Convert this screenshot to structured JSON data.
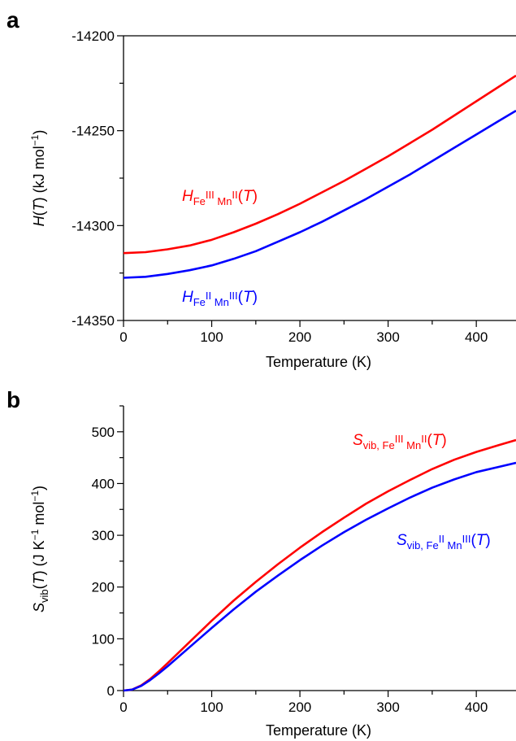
{
  "chart_data": [
    {
      "panel_label": "a",
      "type": "line",
      "xlabel": "Temperature (K)",
      "ylabel": {
        "main": "H",
        "paren": "(",
        "T": "T",
        "rest": ") (kJ mol",
        "sup": "−1",
        "close": ")"
      },
      "xlim": [
        0,
        445
      ],
      "ylim": [
        -14350,
        -14200
      ],
      "xticks": [
        0,
        100,
        200,
        300,
        400
      ],
      "xtick_labels": [
        "0",
        "100",
        "200",
        "300",
        "400"
      ],
      "yticks": [
        -14350,
        -14300,
        -14250,
        -14200
      ],
      "ytick_labels": [
        "-14350",
        "-14300",
        "-14250",
        "-14200"
      ],
      "grid": false,
      "series": [
        {
          "id": "fe3mn2",
          "color": "#ff0000",
          "label": {
            "main": "H",
            "sub1": "Fe",
            "sup1": "III",
            "sub2": " Mn",
            "sup2": "II",
            "open": "(",
            "T": "T",
            "close": ")"
          },
          "x": [
            0,
            25,
            50,
            75,
            100,
            125,
            150,
            175,
            200,
            225,
            250,
            275,
            300,
            325,
            350,
            375,
            400,
            425,
            445
          ],
          "y": [
            -14314.5,
            -14314.0,
            -14312.5,
            -14310.5,
            -14307.5,
            -14303.5,
            -14299.0,
            -14294.0,
            -14288.5,
            -14282.5,
            -14276.5,
            -14270.0,
            -14263.5,
            -14256.5,
            -14249.5,
            -14242.0,
            -14234.5,
            -14227.0,
            -14221.0
          ]
        },
        {
          "id": "fe2mn3",
          "color": "#0000ff",
          "label": {
            "main": "H",
            "sub1": "Fe",
            "sup1": "II",
            "sub2": " Mn",
            "sup2": "III",
            "open": "(",
            "T": "T",
            "close": ")"
          },
          "x": [
            0,
            25,
            50,
            75,
            100,
            125,
            150,
            175,
            200,
            225,
            250,
            275,
            300,
            325,
            350,
            375,
            400,
            425,
            445
          ],
          "y": [
            -14327.5,
            -14327.0,
            -14325.5,
            -14323.5,
            -14321.0,
            -14317.5,
            -14313.5,
            -14308.5,
            -14303.5,
            -14298.0,
            -14292.0,
            -14286.0,
            -14279.5,
            -14273.0,
            -14266.0,
            -14259.0,
            -14252.0,
            -14245.0,
            -14239.5
          ]
        }
      ]
    },
    {
      "panel_label": "b",
      "type": "line",
      "xlabel": "Temperature (K)",
      "ylabel": {
        "main": "S",
        "sub": "vib",
        "paren": "(",
        "T": "T",
        "rest": ") (J K",
        "sup": "−1",
        "mid": " mol",
        "sup2": "−1",
        "close": ")"
      },
      "xlim": [
        0,
        445
      ],
      "ylim": [
        0,
        550
      ],
      "xticks": [
        0,
        100,
        200,
        300,
        400
      ],
      "xtick_labels": [
        "0",
        "100",
        "200",
        "300",
        "400"
      ],
      "yticks": [
        0,
        100,
        200,
        300,
        400,
        500
      ],
      "ytick_labels": [
        "0",
        "100",
        "200",
        "300",
        "400",
        "500"
      ],
      "grid": false,
      "series": [
        {
          "id": "s-fe3mn2",
          "color": "#ff0000",
          "label": {
            "main": "S",
            "sub": "vib, Fe",
            "sup1": "III",
            "sub2": " Mn",
            "sup2": "II",
            "open": "(",
            "T": "T",
            "close": ")"
          },
          "x": [
            0,
            10,
            20,
            30,
            40,
            50,
            75,
            100,
            125,
            150,
            175,
            200,
            225,
            250,
            275,
            300,
            325,
            350,
            375,
            400,
            425,
            445
          ],
          "y": [
            0,
            2,
            10,
            22,
            37,
            53,
            94,
            135,
            174,
            210,
            244,
            276,
            306,
            334,
            361,
            385,
            407,
            428,
            446,
            461,
            474,
            484
          ]
        },
        {
          "id": "s-fe2mn3",
          "color": "#0000ff",
          "label": {
            "main": "S",
            "sub": "vib, Fe",
            "sup1": "II",
            "sub2": " Mn",
            "sup2": "III",
            "open": "(",
            "T": "T",
            "close": ")"
          },
          "x": [
            0,
            10,
            20,
            30,
            40,
            50,
            75,
            100,
            125,
            150,
            175,
            200,
            225,
            250,
            275,
            300,
            325,
            350,
            375,
            400,
            425,
            445
          ],
          "y": [
            0,
            2,
            9,
            20,
            33,
            47,
            84,
            121,
            157,
            191,
            222,
            252,
            280,
            306,
            330,
            352,
            373,
            392,
            408,
            422,
            432,
            440
          ]
        }
      ]
    }
  ]
}
